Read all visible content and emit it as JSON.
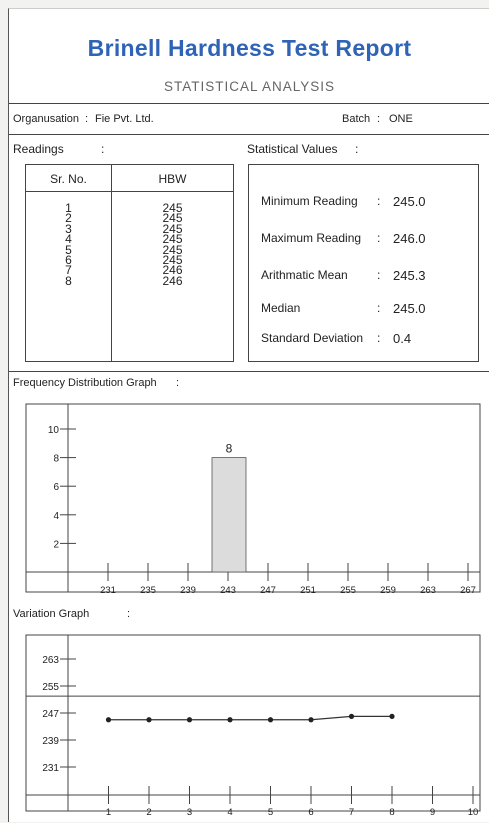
{
  "report": {
    "title": "Brinell Hardness Test Report",
    "subtitle": "STATISTICAL ANALYSIS"
  },
  "info": {
    "org_label": "Organusation",
    "org_sep": ":",
    "org_value": "Fie Pvt. Ltd.",
    "batch_label": "Batch",
    "batch_sep": ":",
    "batch_value": "ONE"
  },
  "readings": {
    "heading": "Readings",
    "heading_sep": ":",
    "col_srno": "Sr. No.",
    "col_hbw": "HBW",
    "sr_no": [
      "1",
      "2",
      "3",
      "4",
      "5",
      "6",
      "7",
      "8"
    ],
    "hbw": [
      "245",
      "245",
      "245",
      "245",
      "245",
      "245",
      "246",
      "246"
    ]
  },
  "statistics": {
    "heading": "Statistical Values",
    "heading_sep": ":",
    "rows": [
      {
        "label": "Minimum Reading",
        "sep": ":",
        "value": "245.0"
      },
      {
        "label": "Maximum Reading",
        "sep": ":",
        "value": "246.0"
      },
      {
        "label": "Arithmatic Mean",
        "sep": ":",
        "value": "245.3"
      },
      {
        "label": "Median",
        "sep": ":",
        "value": "245.0"
      },
      {
        "label": "Standard Deviation",
        "sep": ":",
        "value": "0.4"
      }
    ]
  },
  "chart_data": [
    {
      "type": "bar",
      "title": "Frequency Distribution Graph",
      "title_sep": ":",
      "x_ticks": [
        "231",
        "235",
        "239",
        "243",
        "247",
        "251",
        "255",
        "259",
        "263",
        "267"
      ],
      "y_ticks": [
        "2",
        "4",
        "6",
        "8",
        "10"
      ],
      "xlim": [
        227,
        271
      ],
      "ylim": [
        0,
        11
      ],
      "bars": [
        {
          "x_start": 243,
          "x_end": 247,
          "value": 8,
          "label": "8"
        }
      ],
      "bar_color": "#dcdcdc"
    },
    {
      "type": "line",
      "title": "Variation Graph",
      "title_sep": ":",
      "x_ticks": [
        "1",
        "2",
        "3",
        "4",
        "5",
        "6",
        "7",
        "8",
        "9",
        "10"
      ],
      "y_ticks": [
        "231",
        "239",
        "247",
        "255",
        "263"
      ],
      "xlim": [
        0,
        11
      ],
      "ylim": [
        223,
        269
      ],
      "x": [
        1,
        2,
        3,
        4,
        5,
        6,
        7,
        8
      ],
      "y": [
        245,
        245,
        245,
        245,
        245,
        245,
        246,
        246
      ],
      "reference_line": 252
    }
  ]
}
